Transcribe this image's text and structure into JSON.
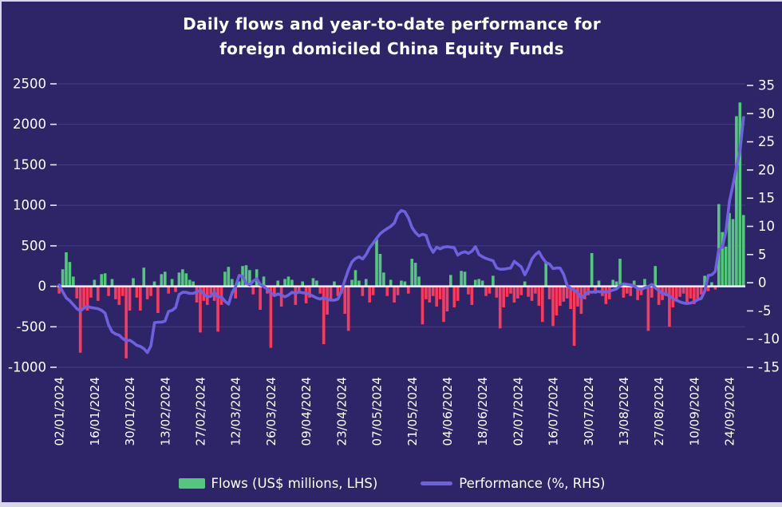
{
  "page": {
    "title_line1": "Daily flows and year-to-date performance for",
    "title_line2": "foreign domiciled China Equity Funds"
  },
  "colors": {
    "background": "#2e2569",
    "page_edge": "#d9d6ea",
    "grid": "#453f82",
    "zero_line": "#f2f0fa",
    "text": "#ffffff",
    "flows_positive": "#53c87d",
    "flows_negative": "#fa3a5c",
    "performance_line": "#6e61e0"
  },
  "legend": {
    "items": [
      {
        "label": "Flows (US$ millions, LHS)",
        "swatch": "bar-swatch-green"
      },
      {
        "label": "Performance (%,  RHS)",
        "swatch": "line-swatch-purple"
      }
    ]
  },
  "chart_data": {
    "type": "bar",
    "subtype": "combo_bar_line_dual_axis",
    "title": "Daily flows and year-to-date performance for foreign domiciled China Equity Funds",
    "grid": "horizontal",
    "legend_position": "bottom",
    "x": {
      "n_points": 195,
      "tick_positions": [
        0,
        10,
        20,
        30,
        40,
        50,
        60,
        70,
        80,
        90,
        100,
        110,
        120,
        130,
        140,
        150,
        160,
        170,
        180,
        190
      ],
      "tick_labels": [
        "02/01/2024",
        "16/01/2024",
        "30/01/2024",
        "13/02/2024",
        "27/02/2024",
        "12/03/2024",
        "26/03/2024",
        "09/04/2024",
        "23/04/2024",
        "07/05/2024",
        "21/05/2024",
        "04/06/2024",
        "18/06/2024",
        "02/07/2024",
        "16/07/2024",
        "30/07/2024",
        "13/08/2024",
        "27/08/2024",
        "10/09/2024",
        "24/09/2024"
      ]
    },
    "left_axis": {
      "label": "Flows (US$ millions)",
      "min": -1000,
      "max": 2500,
      "step": 500,
      "ticks": [
        2500,
        2000,
        1500,
        1000,
        500,
        0,
        -500,
        -1000
      ]
    },
    "right_axis": {
      "label": "Performance (%)",
      "min": -15,
      "max": 35,
      "step": 5,
      "ticks": [
        35,
        30,
        25,
        20,
        15,
        10,
        5,
        0,
        -5,
        -10,
        -15
      ]
    },
    "series": [
      {
        "name": "Flows (US$ millions, LHS)",
        "type": "bar",
        "axis": "left",
        "color_positive": "#53c87d",
        "color_negative": "#fa3a5c",
        "values": [
          -90,
          210,
          420,
          300,
          120,
          -150,
          -820,
          -260,
          -300,
          -140,
          80,
          -180,
          150,
          160,
          -120,
          90,
          -160,
          -230,
          -120,
          -890,
          -300,
          100,
          -140,
          -300,
          230,
          -160,
          -120,
          60,
          -330,
          150,
          180,
          -90,
          90,
          -70,
          170,
          210,
          160,
          80,
          60,
          -200,
          -570,
          -180,
          -230,
          -100,
          -180,
          -560,
          -230,
          180,
          240,
          90,
          -150,
          60,
          250,
          260,
          200,
          -100,
          210,
          -290,
          120,
          -90,
          -760,
          -120,
          70,
          -250,
          90,
          120,
          80,
          -230,
          -90,
          60,
          -210,
          -140,
          100,
          70,
          -90,
          -715,
          -350,
          -180,
          60,
          -120,
          -90,
          -340,
          -550,
          80,
          200,
          70,
          -120,
          90,
          -200,
          -110,
          580,
          400,
          170,
          -120,
          80,
          -200,
          -110,
          70,
          60,
          -90,
          340,
          290,
          120,
          -470,
          -160,
          -200,
          -120,
          -250,
          -160,
          -440,
          -310,
          140,
          -260,
          -180,
          190,
          180,
          -100,
          -230,
          80,
          90,
          70,
          -120,
          -90,
          130,
          -140,
          -520,
          -260,
          -130,
          -90,
          -200,
          -150,
          -110,
          60,
          -130,
          -180,
          -90,
          -240,
          -440,
          290,
          -160,
          -490,
          -360,
          -240,
          -190,
          -150,
          -280,
          -735,
          -250,
          -340,
          -160,
          -110,
          410,
          -90,
          70,
          -120,
          -220,
          -160,
          80,
          60,
          340,
          -140,
          -90,
          -120,
          70,
          -170,
          -110,
          90,
          -550,
          -140,
          250,
          -230,
          -170,
          -120,
          -500,
          -260,
          -190,
          -130,
          -90,
          -200,
          -150,
          -220,
          -150,
          -100,
          130,
          -60,
          50,
          -40,
          1015,
          670,
          490,
          905,
          830,
          2100,
          2270,
          880
        ]
      },
      {
        "name": "Performance (%, RHS)",
        "type": "line",
        "axis": "right",
        "color": "#6e61e0",
        "values": [
          -0.4,
          -1.6,
          -2.7,
          -3.2,
          -3.9,
          -4.6,
          -5.0,
          -4.5,
          -4.2,
          -4.4,
          -4.5,
          -4.6,
          -4.9,
          -5.4,
          -7.5,
          -8.7,
          -9.1,
          -9.3,
          -9.9,
          -10.3,
          -10.2,
          -10.6,
          -11.1,
          -11.3,
          -11.7,
          -12.4,
          -11.2,
          -7.1,
          -7.0,
          -7.0,
          -6.8,
          -5.1,
          -4.9,
          -4.4,
          -2.1,
          -1.7,
          -1.7,
          -1.9,
          -1.9,
          -1.6,
          -1.4,
          -2.0,
          -2.5,
          -2.4,
          -1.7,
          -2.6,
          -2.5,
          -3.3,
          -3.8,
          -1.8,
          -0.7,
          1.3,
          1.1,
          -0.1,
          -0.4,
          0.3,
          0.7,
          -0.3,
          -0.7,
          -1.1,
          -1.8,
          -2.3,
          -2.0,
          -2.2,
          -2.5,
          -2.2,
          -1.7,
          -1.9,
          -1.6,
          -1.8,
          -1.8,
          -2.1,
          -2.4,
          -2.7,
          -2.9,
          -2.6,
          -2.9,
          -3.1,
          -3.1,
          -2.9,
          -1.5,
          0.5,
          2.3,
          3.7,
          4.3,
          4.6,
          4.2,
          5.0,
          6.2,
          7.0,
          7.9,
          8.7,
          9.2,
          9.6,
          10.0,
          10.6,
          12.2,
          12.8,
          12.6,
          11.5,
          9.8,
          8.9,
          8.3,
          8.6,
          8.4,
          6.5,
          5.4,
          6.3,
          6.0,
          6.3,
          6.4,
          6.3,
          6.2,
          4.9,
          5.3,
          5.5,
          5.2,
          5.6,
          6.4,
          5.0,
          4.6,
          4.3,
          4.1,
          3.9,
          2.6,
          2.4,
          2.4,
          2.5,
          2.6,
          3.8,
          3.3,
          2.8,
          1.4,
          2.6,
          4.2,
          5.0,
          5.5,
          4.4,
          3.6,
          3.3,
          2.5,
          2.6,
          2.6,
          1.5,
          -0.5,
          -1.0,
          -1.3,
          -1.8,
          -2.7,
          -2.2,
          -1.6,
          -1.7,
          -1.5,
          -1.6,
          -1.6,
          -1.7,
          -1.5,
          -1.3,
          -1.1,
          -0.5,
          -0.2,
          -0.3,
          -0.4,
          -0.6,
          -1.0,
          -1.2,
          -0.9,
          -0.7,
          -0.3,
          -0.9,
          -1.4,
          -1.9,
          -2.0,
          -2.4,
          -2.8,
          -3.1,
          -3.4,
          -3.6,
          -3.7,
          -3.6,
          -3.4,
          -3.0,
          -2.8,
          -1.5,
          1.3,
          1.4,
          2.0,
          5.9,
          6.3,
          9.1,
          14.4,
          17.3,
          20.5,
          23.5,
          29.3
        ]
      }
    ]
  }
}
